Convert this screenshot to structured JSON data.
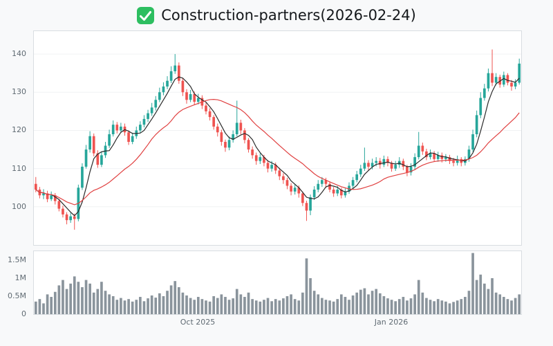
{
  "header": {
    "title": "Construction-partners(2026-02-24)",
    "icon": "green-check-icon",
    "icon_color": "#2dbe60"
  },
  "chart_data": {
    "type": "candlestick",
    "title": "Construction-partners(2026-02-24)",
    "legend": "none",
    "grid": "faint-horizontal",
    "x_ticks": [
      {
        "index": 42,
        "label": "Oct 2025"
      },
      {
        "index": 92,
        "label": "Jan 2026"
      }
    ],
    "price_panel": {
      "ylim": [
        90,
        146
      ],
      "yticks": [
        {
          "value": 100,
          "label": "100"
        },
        {
          "value": 110,
          "label": "110"
        },
        {
          "value": 120,
          "label": "120"
        },
        {
          "value": 130,
          "label": "130"
        },
        {
          "value": 140,
          "label": "140"
        }
      ],
      "up_color": "#26a69a",
      "down_color": "#ef5350",
      "open": [
        106,
        104.5,
        103,
        103.5,
        102,
        103,
        101.5,
        99.5,
        98,
        96.5,
        97.5,
        96.8,
        105,
        110.5,
        115,
        118.5,
        114,
        111,
        113.5,
        116,
        119,
        121.5,
        120,
        121,
        119.5,
        117,
        118.5,
        120,
        121.5,
        123,
        124.5,
        126,
        128,
        130,
        131.5,
        133,
        135.5,
        137,
        133,
        130,
        128,
        129.5,
        127.5,
        128.5,
        126.5,
        125,
        123.5,
        121,
        119.5,
        117,
        115.5,
        117.5,
        119,
        122,
        120,
        117.5,
        115,
        113.5,
        112,
        113,
        111.5,
        110,
        111,
        109.5,
        108,
        107,
        105.5,
        104,
        105,
        103.5,
        101,
        99,
        102.5,
        104.5,
        106,
        107,
        106,
        104.5,
        103.5,
        104.5,
        103,
        104,
        105.5,
        107,
        108.5,
        110,
        111.5,
        110.5,
        111.5,
        112,
        111,
        112.5,
        111.5,
        110,
        111,
        112,
        110.5,
        109,
        110.5,
        113,
        116,
        114.5,
        113,
        114,
        112.5,
        113.5,
        112.5,
        113,
        112,
        111.5,
        112.5,
        111.5,
        112.5,
        115,
        119,
        124,
        128.5,
        131,
        135,
        132.5,
        134,
        132,
        134.5,
        132.5,
        131.5,
        132.5
      ],
      "high": [
        107.8,
        105.2,
        104.6,
        104.2,
        104,
        103.6,
        102,
        100.3,
        98.6,
        98.4,
        98.2,
        105.8,
        111.4,
        116.2,
        119.8,
        119.2,
        114.8,
        114.4,
        117,
        120.2,
        122.6,
        122.2,
        122,
        121.8,
        120,
        119.4,
        121,
        122.4,
        124,
        125.4,
        127.2,
        129,
        131.2,
        132.6,
        134.2,
        136.8,
        140,
        137.8,
        133.8,
        130.8,
        130.6,
        130.2,
        129.6,
        129.2,
        127.2,
        125.8,
        124,
        121.8,
        120.2,
        117.6,
        118.4,
        120,
        127.8,
        122.8,
        120.6,
        118,
        115.8,
        114.2,
        114,
        113.6,
        112.2,
        112,
        111.6,
        110.2,
        108.8,
        107.6,
        106.2,
        106,
        105.6,
        104,
        101.6,
        103.2,
        105.4,
        107,
        107.8,
        107.6,
        106.6,
        105.2,
        105.4,
        105,
        104.8,
        106.4,
        107.8,
        109.4,
        111,
        115.5,
        112.2,
        112.6,
        113,
        112.8,
        113.4,
        113.2,
        112,
        112,
        113,
        112.6,
        111,
        111.4,
        114,
        119.6,
        116.8,
        115.2,
        115,
        114.6,
        114.4,
        114.2,
        113.8,
        113.6,
        112.8,
        113.4,
        113,
        113.2,
        116,
        120.2,
        125.2,
        130,
        132.2,
        136.2,
        141.2,
        135,
        134.6,
        135.4,
        135,
        133.2,
        133.4,
        138.8
      ],
      "low": [
        103.8,
        102.2,
        102,
        101.2,
        101.5,
        100.6,
        98.8,
        97.2,
        95.4,
        95.8,
        94,
        96.2,
        104.4,
        110,
        114.2,
        113.2,
        110.2,
        110.4,
        112.8,
        115.4,
        118.4,
        119.2,
        119.4,
        118.6,
        116.2,
        116.4,
        117.8,
        119.4,
        120.8,
        122.2,
        123.8,
        125.2,
        127.4,
        129.2,
        130.8,
        132.4,
        134.8,
        132.2,
        129,
        127,
        127.4,
        126.6,
        126.8,
        125.6,
        124.2,
        122.6,
        120.2,
        118.4,
        116,
        114.4,
        114.8,
        116.8,
        118.4,
        119,
        116.6,
        114.2,
        112.6,
        111,
        111.2,
        110.6,
        109,
        109.2,
        108.6,
        107,
        106,
        104.6,
        103,
        103.2,
        102.4,
        100.2,
        96.3,
        97.8,
        101.8,
        103.8,
        105.2,
        105,
        103.8,
        102.6,
        102.8,
        102.2,
        102.4,
        103.4,
        104.8,
        106.4,
        107.8,
        109.4,
        109.4,
        109.8,
        110.6,
        110,
        110.4,
        110.6,
        109.2,
        109.4,
        110.2,
        109.6,
        108,
        108.2,
        109.8,
        112.4,
        113.6,
        112.2,
        112.4,
        111.8,
        111.8,
        111.6,
        111.8,
        111.2,
        110.6,
        110.8,
        110.6,
        110.8,
        111.8,
        114.4,
        118.2,
        123.2,
        127.8,
        130.2,
        131.6,
        131.8,
        131.2,
        131.4,
        131.8,
        130.4,
        130.8,
        132
      ],
      "close": [
        104.5,
        103,
        103.5,
        102,
        103,
        101.5,
        99.5,
        98,
        96.5,
        97.5,
        96.8,
        105,
        110.5,
        115,
        118.5,
        114,
        111,
        113.5,
        116,
        119,
        121.5,
        120,
        121,
        119.5,
        117,
        118.5,
        120,
        121.5,
        123,
        124.5,
        126,
        128,
        130,
        131.5,
        133,
        135.5,
        137,
        133,
        130,
        128,
        129.5,
        127.5,
        128.5,
        126.5,
        125,
        123.5,
        121,
        119.5,
        117,
        115.5,
        117.5,
        119,
        122,
        120,
        117.5,
        115,
        113.5,
        112,
        113,
        111.5,
        110,
        111,
        109.5,
        108,
        107,
        105.5,
        104,
        105,
        103.5,
        101,
        99,
        102.5,
        104.5,
        106,
        107,
        106,
        104.5,
        103.5,
        104.5,
        103,
        104,
        105.5,
        107,
        108.5,
        110,
        111.5,
        110.5,
        111.5,
        112,
        111,
        112.5,
        111.5,
        110,
        111,
        112,
        110.5,
        109,
        110.5,
        113,
        116,
        114.5,
        113,
        114,
        112.5,
        113.5,
        112.5,
        113,
        112,
        111.5,
        112.5,
        111.5,
        112.5,
        115,
        119,
        124,
        128.5,
        131,
        135,
        132.5,
        134,
        132,
        134.5,
        132.5,
        131.5,
        132.5,
        137.5
      ],
      "overlays": [
        {
          "name": "sma-short",
          "window": 5,
          "color": "#2a2a2a"
        },
        {
          "name": "sma-long",
          "window": 20,
          "color": "#e04040"
        }
      ]
    },
    "volume_panel": {
      "ylim": [
        0,
        1.75
      ],
      "yticks": [
        {
          "value": 0,
          "label": "0"
        },
        {
          "value": 0.5,
          "label": "0.5M"
        },
        {
          "value": 1,
          "label": "1M"
        },
        {
          "value": 1.5,
          "label": "1.5M"
        }
      ],
      "bar_color": "#8a949c",
      "values": [
        0.35,
        0.42,
        0.3,
        0.55,
        0.48,
        0.62,
        0.8,
        0.95,
        0.7,
        0.85,
        1.05,
        0.9,
        0.75,
        0.95,
        0.85,
        0.6,
        0.7,
        0.9,
        0.65,
        0.55,
        0.5,
        0.4,
        0.45,
        0.38,
        0.42,
        0.35,
        0.4,
        0.48,
        0.36,
        0.44,
        0.52,
        0.46,
        0.58,
        0.5,
        0.65,
        0.8,
        0.92,
        0.75,
        0.6,
        0.52,
        0.45,
        0.4,
        0.48,
        0.42,
        0.38,
        0.35,
        0.5,
        0.45,
        0.55,
        0.48,
        0.4,
        0.44,
        0.7,
        0.55,
        0.48,
        0.6,
        0.42,
        0.38,
        0.35,
        0.4,
        0.45,
        0.36,
        0.42,
        0.38,
        0.44,
        0.5,
        0.55,
        0.42,
        0.38,
        0.6,
        1.55,
        1.0,
        0.65,
        0.55,
        0.45,
        0.4,
        0.38,
        0.35,
        0.42,
        0.55,
        0.48,
        0.4,
        0.52,
        0.6,
        0.68,
        0.72,
        0.55,
        0.65,
        0.7,
        0.58,
        0.5,
        0.44,
        0.4,
        0.36,
        0.42,
        0.48,
        0.38,
        0.44,
        0.55,
        0.95,
        0.6,
        0.45,
        0.4,
        0.36,
        0.42,
        0.38,
        0.35,
        0.3,
        0.34,
        0.38,
        0.42,
        0.48,
        0.65,
        1.7,
        0.95,
        1.1,
        0.85,
        0.7,
        1.0,
        0.6,
        0.55,
        0.48,
        0.42,
        0.38,
        0.45,
        0.55
      ]
    }
  }
}
